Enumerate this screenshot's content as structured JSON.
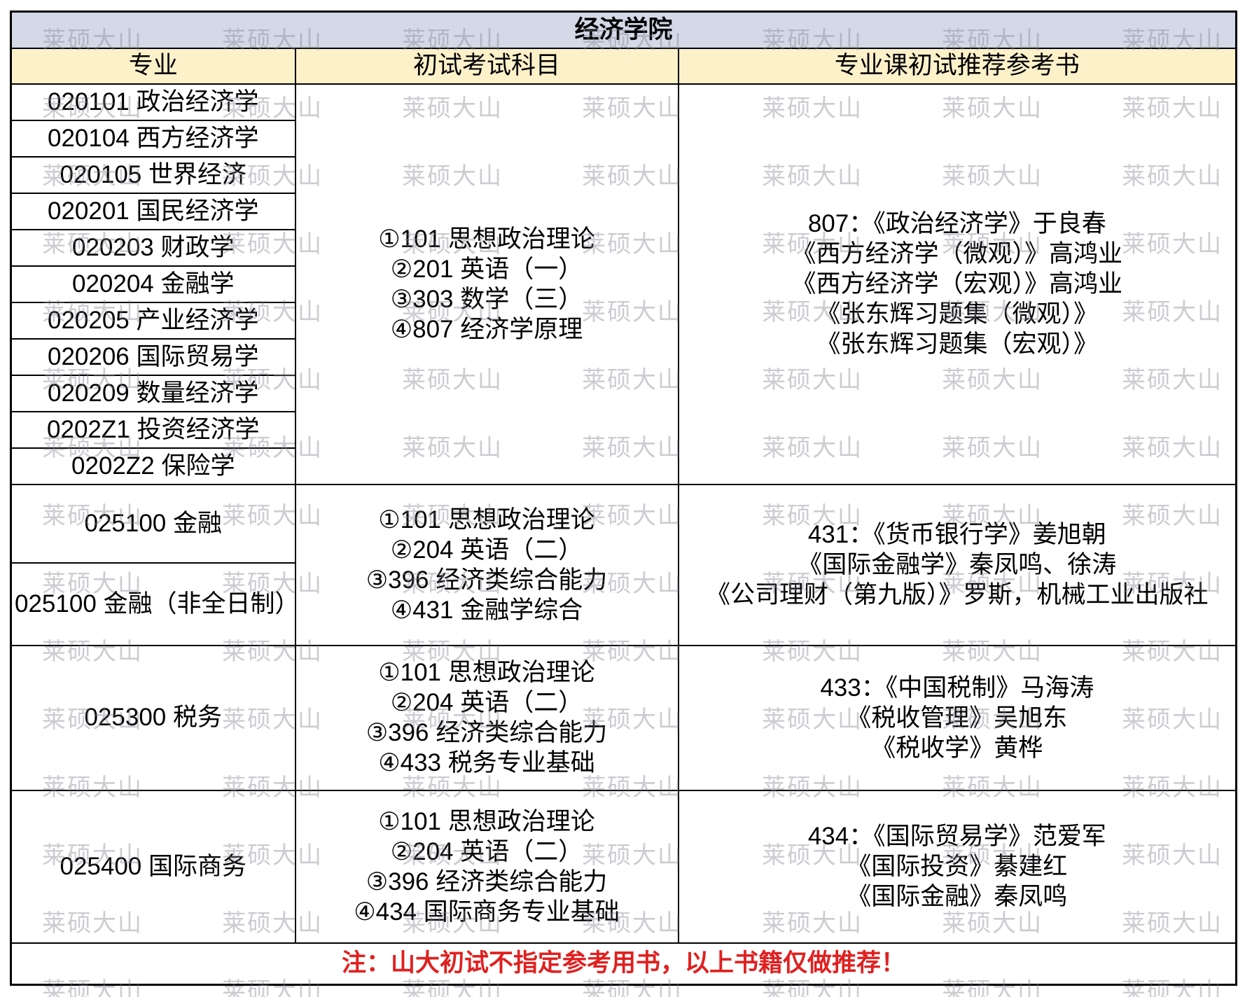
{
  "title": "经济学院",
  "columns": [
    "专业",
    "初试考试科目",
    "专业课初试推荐参考书"
  ],
  "note": "注：山大初试不指定参考用书，以上书籍仅做推荐！",
  "watermark": {
    "text": "莱硕大山"
  },
  "colors": {
    "title_bg": "#d4d9e8",
    "header_bg": "#fdf1ca",
    "note_red": "#e02020",
    "border": "#000000",
    "watermark_gray": "#d2d2d6"
  },
  "groups": [
    {
      "majors": [
        "020101 政治经济学",
        "020104 西方经济学",
        "020105 世界经济",
        "020201 国民经济学",
        "020203 财政学",
        "020204 金融学",
        "020205 产业经济学",
        "020206 国际贸易学",
        "020209 数量经济学",
        "0202Z1 投资经济学",
        "0202Z2 保险学"
      ],
      "subjects": [
        "①101 思想政治理论",
        "②201 英语（一）",
        "③303 数学（三）",
        "④807 经济学原理"
      ],
      "references": [
        "807：《政治经济学》于良春",
        "《西方经济学（微观）》高鸿业",
        "《西方经济学（宏观）》高鸿业",
        "《张东辉习题集（微观）》",
        "《张东辉习题集（宏观）》"
      ]
    },
    {
      "majors": [
        "025100 金融",
        "025100 金融（非全日制）"
      ],
      "subjects": [
        "①101 思想政治理论",
        "②204 英语（二）",
        "③396 经济类综合能力",
        "④431 金融学综合"
      ],
      "references": [
        "431：《货币银行学》姜旭朝",
        "《国际金融学》秦凤鸣、徐涛",
        "《公司理财（第九版）》罗斯，机械工业出版社"
      ]
    },
    {
      "majors": [
        "025300 税务"
      ],
      "subjects": [
        "①101 思想政治理论",
        "②204 英语（二）",
        "③396 经济类综合能力",
        "④433 税务专业基础"
      ],
      "references": [
        "433：《中国税制》马海涛",
        "《税收管理》吴旭东",
        "《税收学》黄桦"
      ]
    },
    {
      "majors": [
        "025400 国际商务"
      ],
      "subjects": [
        "①101 思想政治理论",
        "②204 英语（二）",
        "③396 经济类综合能力",
        "④434 国际商务专业基础"
      ],
      "references": [
        "434：《国际贸易学》范爱军",
        "《国际投资》綦建红",
        "《国际金融》秦凤鸣"
      ]
    }
  ]
}
